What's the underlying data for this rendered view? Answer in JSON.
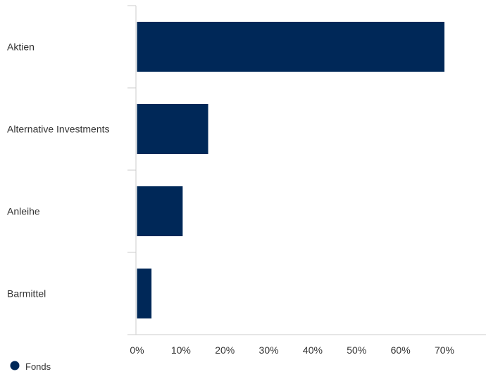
{
  "chart_data": {
    "type": "bar",
    "orientation": "horizontal",
    "categories": [
      "Aktien",
      "Alternative Investments",
      "Anleihe",
      "Barmittel"
    ],
    "series": [
      {
        "name": "Fonds",
        "values": [
          70.0,
          16.2,
          10.4,
          3.3
        ],
        "color": "#002858"
      }
    ],
    "xlim": [
      0,
      70
    ],
    "xticks": [
      0,
      10,
      20,
      30,
      40,
      50,
      60,
      70
    ],
    "tick_suffix": "%",
    "grid": false,
    "legend": {
      "position": "bottom-left"
    }
  }
}
